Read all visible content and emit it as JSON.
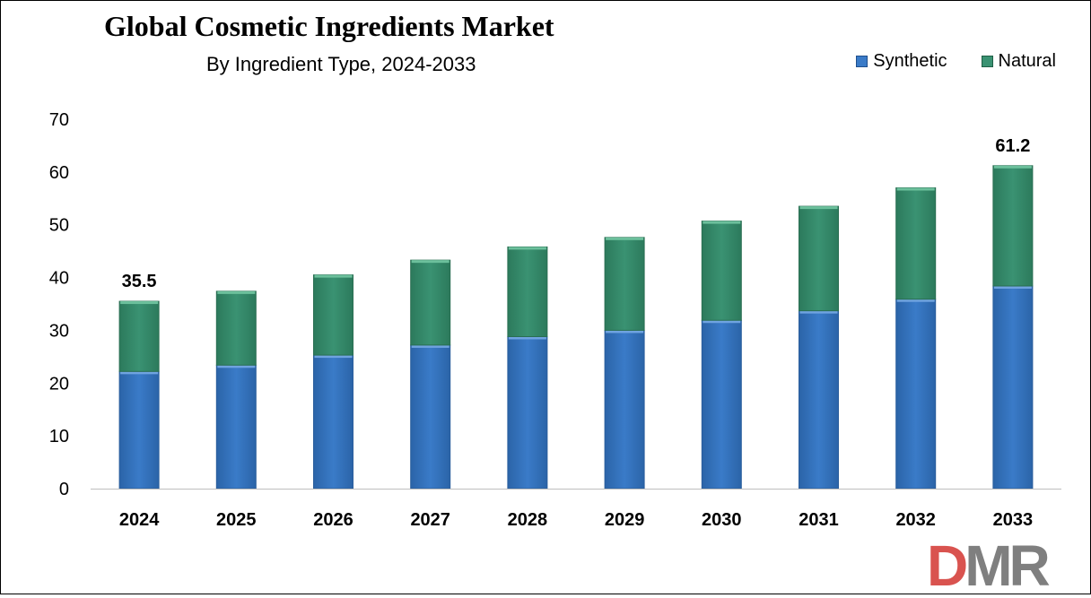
{
  "chart_data": {
    "type": "bar",
    "stacked": true,
    "title": "Global Cosmetic Ingredients Market",
    "subtitle": "By Ingredient Type, 2024-2033",
    "categories": [
      "2024",
      "2025",
      "2026",
      "2027",
      "2028",
      "2029",
      "2030",
      "2031",
      "2032",
      "2033"
    ],
    "series": [
      {
        "name": "Synthetic",
        "color": "#3a7bc8",
        "values": [
          22.2,
          23.4,
          25.3,
          27.2,
          28.8,
          30.0,
          31.9,
          33.7,
          35.9,
          38.4
        ]
      },
      {
        "name": "Natural",
        "color": "#3a9272",
        "values": [
          13.3,
          14.0,
          15.2,
          16.1,
          17.0,
          17.6,
          18.8,
          19.8,
          21.1,
          22.8
        ]
      }
    ],
    "totals_labels": [
      {
        "category": "2024",
        "text": "35.5"
      },
      {
        "category": "2033",
        "text": "61.2"
      }
    ],
    "ylim": [
      0,
      70
    ],
    "yticks": [
      "0",
      "10",
      "20",
      "30",
      "40",
      "50",
      "60",
      "70"
    ],
    "grid": false,
    "legend_position": "top-right"
  },
  "logo": {
    "d": "D",
    "m": "M",
    "r": "R"
  }
}
